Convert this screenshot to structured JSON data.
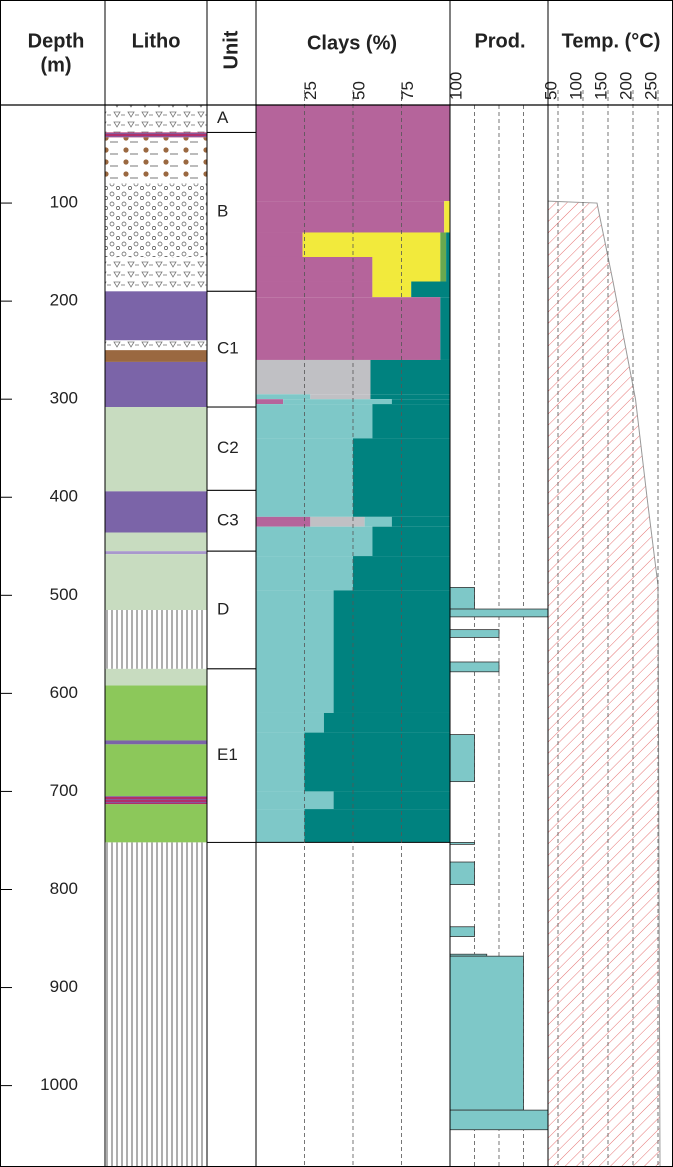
{
  "chart_data": {
    "type": "well-log",
    "depth_axis": {
      "title": [
        "Depth",
        "(m)"
      ],
      "ylim": [
        0,
        1083
      ],
      "yticks": [
        100,
        200,
        300,
        400,
        500,
        600,
        700,
        800,
        900,
        1000
      ]
    },
    "litho": {
      "title": "Litho",
      "layers": [
        {
          "top": 0,
          "bottom": 28,
          "color": "#ffffff",
          "pattern": "triangles"
        },
        {
          "top": 28,
          "bottom": 33,
          "color": "#b0306a",
          "pattern": "stripes"
        },
        {
          "top": 33,
          "bottom": 80,
          "color": "#ffffff",
          "pattern": "dots"
        },
        {
          "top": 80,
          "bottom": 155,
          "color": "#ffffff",
          "pattern": "circles"
        },
        {
          "top": 155,
          "bottom": 190,
          "color": "#ffffff",
          "pattern": "triangles"
        },
        {
          "top": 190,
          "bottom": 240,
          "color": "#7b64a8",
          "pattern": "solid"
        },
        {
          "top": 240,
          "bottom": 250,
          "color": "#ffffff",
          "pattern": "triangles"
        },
        {
          "top": 250,
          "bottom": 262,
          "color": "#9a6840",
          "pattern": "solid"
        },
        {
          "top": 262,
          "bottom": 308,
          "color": "#7b64a8",
          "pattern": "solid"
        },
        {
          "top": 308,
          "bottom": 394,
          "color": "#c8dcc0",
          "pattern": "solid"
        },
        {
          "top": 394,
          "bottom": 436,
          "color": "#7b64a8",
          "pattern": "solid"
        },
        {
          "top": 436,
          "bottom": 455,
          "color": "#c8dcc0",
          "pattern": "solid"
        },
        {
          "top": 455,
          "bottom": 458,
          "color": "#a898cc",
          "pattern": "solid"
        },
        {
          "top": 458,
          "bottom": 515,
          "color": "#c8dcc0",
          "pattern": "solid"
        },
        {
          "top": 515,
          "bottom": 575,
          "color": "#ffffff",
          "pattern": "vlines"
        },
        {
          "top": 575,
          "bottom": 592,
          "color": "#c8dcc0",
          "pattern": "solid"
        },
        {
          "top": 592,
          "bottom": 648,
          "color": "#8cc85a",
          "pattern": "solid"
        },
        {
          "top": 648,
          "bottom": 652,
          "color": "#7b64a8",
          "pattern": "solid"
        },
        {
          "top": 652,
          "bottom": 705,
          "color": "#8cc85a",
          "pattern": "solid"
        },
        {
          "top": 705,
          "bottom": 713,
          "color": "#7b64a8",
          "pattern": "stripes"
        },
        {
          "top": 713,
          "bottom": 752,
          "color": "#8cc85a",
          "pattern": "solid"
        },
        {
          "top": 752,
          "bottom": 1083,
          "color": "#ffffff",
          "pattern": "vlines"
        }
      ]
    },
    "units": {
      "title": "Unit",
      "intervals": [
        {
          "label": "A",
          "top": 0,
          "bottom": 28
        },
        {
          "label": "B",
          "top": 28,
          "bottom": 190
        },
        {
          "label": "C1",
          "top": 190,
          "bottom": 308
        },
        {
          "label": "C2",
          "top": 308,
          "bottom": 393
        },
        {
          "label": "C3",
          "top": 393,
          "bottom": 455
        },
        {
          "label": "D",
          "top": 455,
          "bottom": 575
        },
        {
          "label": "E1",
          "top": 575,
          "bottom": 752
        }
      ]
    },
    "clays": {
      "title": "Clays (%)",
      "xlim": [
        0,
        100
      ],
      "xticks": [
        25,
        50,
        75,
        100
      ],
      "intervals": [
        {
          "top": 0,
          "bottom": 98,
          "segments": [
            {
              "color": "#b5649b",
              "value": 100
            }
          ]
        },
        {
          "top": 98,
          "bottom": 130,
          "segments": [
            {
              "color": "#b5649b",
              "value": 97
            },
            {
              "color": "#f2ea3c",
              "value": 3
            }
          ]
        },
        {
          "top": 130,
          "bottom": 155,
          "segments": [
            {
              "color": "#b5649b",
              "value": 24
            },
            {
              "color": "#f2ea3c",
              "value": 71
            },
            {
              "color": "#6aa84f",
              "value": 3
            },
            {
              "color": "#00827f",
              "value": 2
            }
          ]
        },
        {
          "top": 155,
          "bottom": 180,
          "segments": [
            {
              "color": "#b5649b",
              "value": 60
            },
            {
              "color": "#f2ea3c",
              "value": 35
            },
            {
              "color": "#6aa84f",
              "value": 3
            },
            {
              "color": "#00827f",
              "value": 2
            }
          ]
        },
        {
          "top": 180,
          "bottom": 196,
          "segments": [
            {
              "color": "#b5649b",
              "value": 60
            },
            {
              "color": "#f2ea3c",
              "value": 20
            },
            {
              "color": "#00827f",
              "value": 20
            }
          ]
        },
        {
          "top": 196,
          "bottom": 260,
          "segments": [
            {
              "color": "#b5649b",
              "value": 95
            },
            {
              "color": "#00827f",
              "value": 5
            }
          ]
        },
        {
          "top": 260,
          "bottom": 295,
          "segments": [
            {
              "color": "#c0c0c4",
              "value": 59
            },
            {
              "color": "#00827f",
              "value": 41
            }
          ]
        },
        {
          "top": 295,
          "bottom": 300,
          "segments": [
            {
              "color": "#7ec8c8",
              "value": 28
            },
            {
              "color": "#c0c0c4",
              "value": 31
            },
            {
              "color": "#00827f",
              "value": 41
            }
          ]
        },
        {
          "top": 300,
          "bottom": 305,
          "segments": [
            {
              "color": "#b5649b",
              "value": 14
            },
            {
              "color": "#7ec8c8",
              "value": 56
            },
            {
              "color": "#00827f",
              "value": 30
            }
          ]
        },
        {
          "top": 305,
          "bottom": 340,
          "segments": [
            {
              "color": "#7ec8c8",
              "value": 60
            },
            {
              "color": "#00827f",
              "value": 40
            }
          ]
        },
        {
          "top": 340,
          "bottom": 420,
          "segments": [
            {
              "color": "#7ec8c8",
              "value": 50
            },
            {
              "color": "#00827f",
              "value": 50
            }
          ]
        },
        {
          "top": 420,
          "bottom": 430,
          "segments": [
            {
              "color": "#b5649b",
              "value": 28
            },
            {
              "color": "#c0c0c4",
              "value": 28
            },
            {
              "color": "#7ec8c8",
              "value": 14
            },
            {
              "color": "#00827f",
              "value": 30
            }
          ]
        },
        {
          "top": 430,
          "bottom": 460,
          "segments": [
            {
              "color": "#7ec8c8",
              "value": 60
            },
            {
              "color": "#00827f",
              "value": 40
            }
          ]
        },
        {
          "top": 460,
          "bottom": 495,
          "segments": [
            {
              "color": "#7ec8c8",
              "value": 50
            },
            {
              "color": "#00827f",
              "value": 50
            }
          ]
        },
        {
          "top": 495,
          "bottom": 620,
          "segments": [
            {
              "color": "#7ec8c8",
              "value": 40
            },
            {
              "color": "#00827f",
              "value": 60
            }
          ]
        },
        {
          "top": 620,
          "bottom": 640,
          "segments": [
            {
              "color": "#7ec8c8",
              "value": 35
            },
            {
              "color": "#00827f",
              "value": 65
            }
          ]
        },
        {
          "top": 640,
          "bottom": 700,
          "segments": [
            {
              "color": "#7ec8c8",
              "value": 25
            },
            {
              "color": "#00827f",
              "value": 75
            }
          ]
        },
        {
          "top": 700,
          "bottom": 718,
          "segments": [
            {
              "color": "#7ec8c8",
              "value": 40
            },
            {
              "color": "#00827f",
              "value": 60
            }
          ]
        },
        {
          "top": 718,
          "bottom": 752,
          "segments": [
            {
              "color": "#7ec8c8",
              "value": 25
            },
            {
              "color": "#00827f",
              "value": 75
            }
          ]
        }
      ]
    },
    "prod": {
      "title": "Prod.",
      "xlim": [
        0,
        4
      ],
      "xgrid": [
        1,
        2,
        3
      ],
      "color": "#7ec8c8",
      "intervals": [
        {
          "top": 492,
          "bottom": 514,
          "value": 1
        },
        {
          "top": 514,
          "bottom": 522,
          "value": 4
        },
        {
          "top": 535,
          "bottom": 543,
          "value": 2
        },
        {
          "top": 568,
          "bottom": 578,
          "value": 2
        },
        {
          "top": 642,
          "bottom": 690,
          "value": 1
        },
        {
          "top": 752,
          "bottom": 754,
          "value": 1
        },
        {
          "top": 772,
          "bottom": 795,
          "value": 1
        },
        {
          "top": 838,
          "bottom": 848,
          "value": 1
        },
        {
          "top": 866,
          "bottom": 868,
          "value": 1.5
        },
        {
          "top": 868,
          "bottom": 1025,
          "value": 3
        },
        {
          "top": 1025,
          "bottom": 1045,
          "value": 4
        }
      ]
    },
    "temp": {
      "title": "Temp. (°C)",
      "xlim": [
        30,
        280
      ],
      "xticks": [
        50,
        100,
        150,
        200,
        250
      ],
      "color": "#e05050",
      "depth": [
        98,
        100,
        180,
        300,
        400,
        490,
        1083
      ],
      "values": [
        30,
        128,
        160,
        205,
        228,
        250,
        254
      ]
    }
  }
}
